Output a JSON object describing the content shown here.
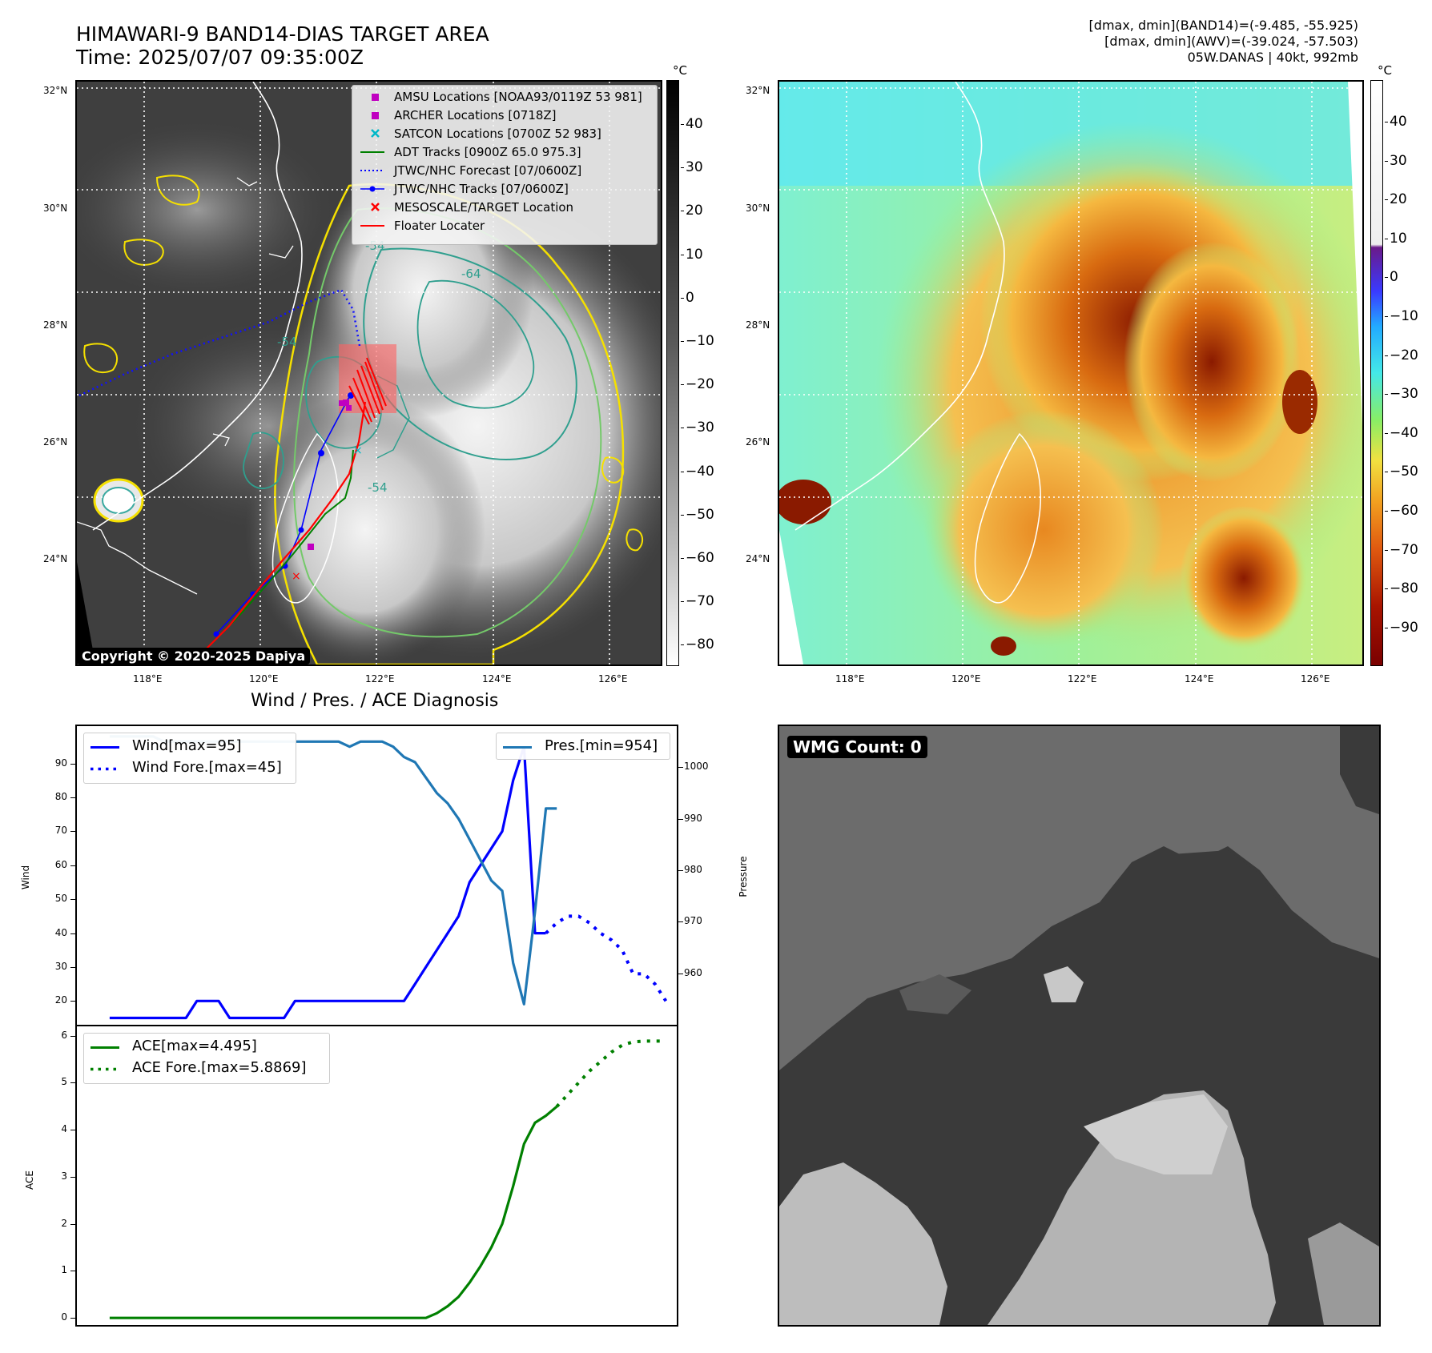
{
  "header": {
    "title_line1": "HIMAWARI-9 BAND14-DIAS TARGET AREA",
    "title_line2": "Time: 2025/07/07 09:35:00Z",
    "info_line1": "[dmax, dmin](BAND14)=(-9.485, -55.925)",
    "info_line2": "[dmax, dmin](AWV)=(-39.024, -57.503)",
    "info_line3": "05W.DANAS | 40kt, 992mb"
  },
  "map_axes": {
    "lat_labels": [
      "32°N",
      "30°N",
      "28°N",
      "26°N",
      "24°N"
    ],
    "lon_labels": [
      "118°E",
      "120°E",
      "122°E",
      "124°E",
      "126°E"
    ]
  },
  "ir_panel": {
    "legend": [
      {
        "label": "AMSU Locations [NOAA93/0119Z 53 981]",
        "marker": "square",
        "color": "#c000c0"
      },
      {
        "label": "ARCHER Locations [0718Z]",
        "marker": "square",
        "color": "#c000c0"
      },
      {
        "label": "SATCON Locations [0700Z 52 983]",
        "marker": "x",
        "color": "#00b8c8"
      },
      {
        "label": "ADT Tracks [0900Z 65.0 975.3]",
        "marker": "line",
        "color": "#008000"
      },
      {
        "label": "JTWC/NHC Forecast [07/0600Z]",
        "marker": "dotted",
        "color": "#0000ff"
      },
      {
        "label": "JTWC/NHC Tracks [07/0600Z]",
        "marker": "line-dot",
        "color": "#0000ff"
      },
      {
        "label": "MESOSCALE/TARGET Location",
        "marker": "x",
        "color": "#ff0000"
      },
      {
        "label": "Floater Locater",
        "marker": "line",
        "color": "#ff0000"
      }
    ],
    "contour_labels": [
      "-54",
      "-54",
      "-54",
      "-64"
    ],
    "colorbar_unit": "°C",
    "colorbar_ticks": [
      "40",
      "30",
      "20",
      "10",
      "0",
      "−10",
      "−20",
      "−30",
      "−40",
      "−50",
      "−60",
      "−70",
      "−80"
    ],
    "copyright": "Copyright © 2020-2025 Dapiya"
  },
  "awv_panel": {
    "colorbar_unit": "°C",
    "colorbar_ticks": [
      "40",
      "30",
      "20",
      "10",
      "0",
      "−10",
      "−20",
      "−30",
      "−40",
      "−50",
      "−60",
      "−70",
      "−80",
      "−90"
    ]
  },
  "wmg_panel": {
    "label": "WMG Count: 0"
  },
  "diag_title": "Wind / Pres. / ACE Diagnosis",
  "chart_data": [
    {
      "type": "line",
      "title": "Wind / Pres. / ACE Diagnosis",
      "ylabel": "Wind",
      "y2label": "Pressure",
      "ylim": [
        13,
        101
      ],
      "y2lim": [
        950,
        1008
      ],
      "yticks": [
        20,
        30,
        40,
        50,
        60,
        70,
        80,
        90
      ],
      "y2ticks": [
        960,
        970,
        980,
        990,
        1000
      ],
      "series": [
        {
          "name": "Wind[max=95]",
          "style": "solid",
          "color": "#0000ff",
          "axis": "left",
          "x": [
            0,
            1,
            2,
            3,
            4,
            5,
            6,
            7,
            8,
            9,
            10,
            11,
            12,
            13,
            14,
            15,
            16,
            17,
            18,
            19,
            20,
            21,
            22,
            23,
            24,
            25,
            26,
            27,
            28,
            29,
            30,
            31,
            32,
            33,
            34,
            35,
            36,
            37,
            38
          ],
          "y": [
            15,
            15,
            15,
            15,
            15,
            15,
            15,
            15,
            20,
            20,
            20,
            15,
            15,
            15,
            15,
            15,
            15,
            20,
            20,
            20,
            20,
            20,
            20,
            20,
            20,
            20,
            20,
            20,
            25,
            30,
            35,
            40,
            45,
            55,
            60,
            65,
            70,
            85,
            95
          ]
        },
        {
          "name": "",
          "style": "solid",
          "color": "#0000ff",
          "axis": "left",
          "x": [
            38,
            39,
            40
          ],
          "y": [
            95,
            40,
            40
          ]
        },
        {
          "name": "Wind Fore.[max=45]",
          "style": "dotted",
          "color": "#0000ff",
          "axis": "left",
          "x": [
            40,
            41,
            42,
            43,
            44,
            45,
            46,
            47,
            48,
            49,
            50,
            51
          ],
          "y": [
            40,
            43,
            45,
            45,
            43,
            40,
            38,
            35,
            28,
            28,
            25,
            20
          ]
        },
        {
          "name": "Pres.[min=954]",
          "style": "solid",
          "color": "#1f77b4",
          "axis": "right",
          "x": [
            0,
            1,
            2,
            3,
            4,
            5,
            6,
            7,
            8,
            9,
            10,
            11,
            12,
            13,
            14,
            15,
            16,
            17,
            18,
            19,
            20,
            21,
            22,
            23,
            24,
            25,
            26,
            27,
            28,
            29,
            30,
            31,
            32,
            33,
            34,
            35,
            36,
            37,
            38,
            39,
            40,
            41
          ],
          "y": [
            1006,
            1006,
            1006,
            1006,
            1006,
            1005,
            1005,
            1005,
            1005,
            1005,
            1005,
            1005,
            1005,
            1005,
            1005,
            1005,
            1005,
            1005,
            1005,
            1005,
            1005,
            1005,
            1004,
            1005,
            1005,
            1005,
            1004,
            1002,
            1001,
            998,
            995,
            993,
            990,
            986,
            982,
            978,
            976,
            962,
            954,
            972,
            992,
            992
          ]
        }
      ]
    },
    {
      "type": "line",
      "ylabel": "ACE",
      "ylim": [
        -0.15,
        6.2
      ],
      "yticks": [
        0,
        1,
        2,
        3,
        4,
        5,
        6
      ],
      "series": [
        {
          "name": "ACE[max=4.495]",
          "style": "solid",
          "color": "#008000",
          "x": [
            0,
            1,
            2,
            3,
            4,
            5,
            6,
            7,
            8,
            9,
            10,
            11,
            12,
            13,
            14,
            15,
            16,
            17,
            18,
            19,
            20,
            21,
            22,
            23,
            24,
            25,
            26,
            27,
            28,
            29,
            30,
            31,
            32,
            33,
            34,
            35,
            36,
            37,
            38,
            39,
            40,
            41
          ],
          "y": [
            0,
            0,
            0,
            0,
            0,
            0,
            0,
            0,
            0,
            0,
            0,
            0,
            0,
            0,
            0,
            0,
            0,
            0,
            0,
            0,
            0,
            0,
            0,
            0,
            0,
            0,
            0,
            0,
            0,
            0,
            0.1,
            0.25,
            0.45,
            0.75,
            1.1,
            1.5,
            2.0,
            2.8,
            3.7,
            4.15,
            4.3,
            4.495
          ]
        },
        {
          "name": "ACE Fore.[max=5.8869]",
          "style": "dotted",
          "color": "#008000",
          "x": [
            41,
            42,
            43,
            44,
            45,
            46,
            47,
            48,
            49,
            50,
            51
          ],
          "y": [
            4.495,
            4.75,
            5.0,
            5.25,
            5.45,
            5.65,
            5.8,
            5.87,
            5.887,
            5.887,
            5.887
          ]
        }
      ]
    }
  ]
}
